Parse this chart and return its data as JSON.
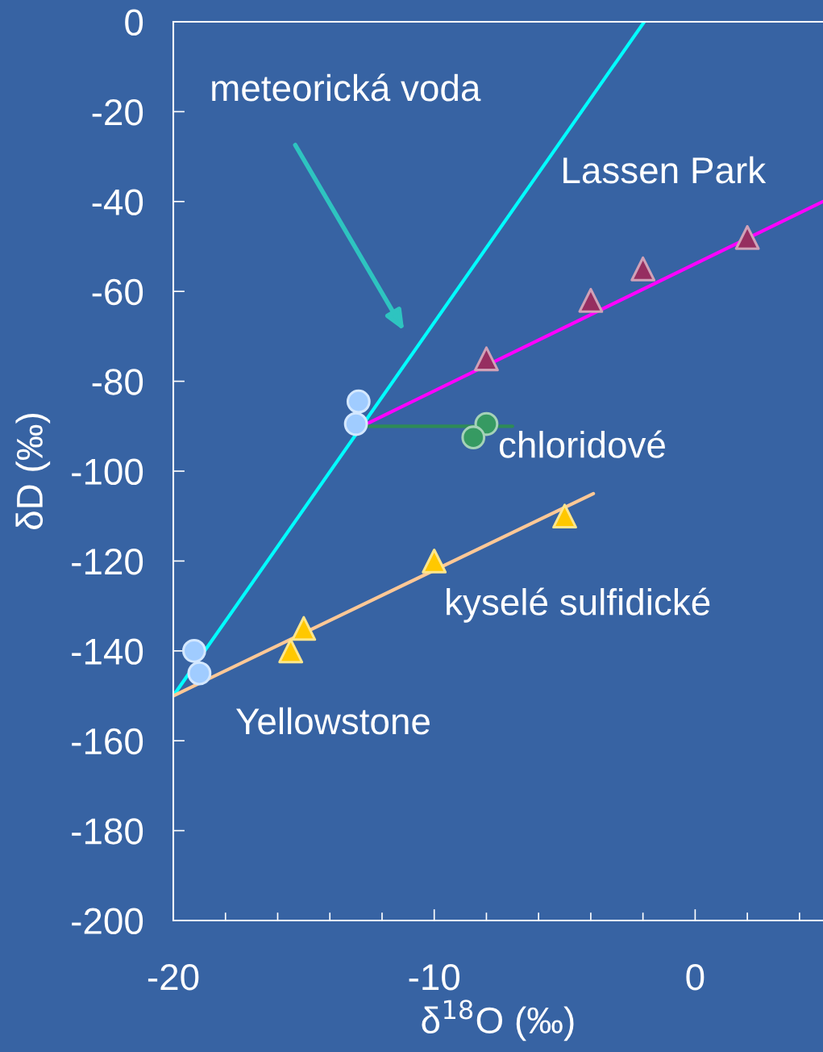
{
  "chart_data": {
    "type": "scatter",
    "xlabel": "δ$^{18}$O (‰)",
    "ylabel": "δD (‰)",
    "xlim": [
      -20,
      4.9
    ],
    "ylim": [
      -200,
      0
    ],
    "xticks": [
      -20,
      {
        "value": -18,
        "label": null
      },
      {
        "value": -16,
        "label": null
      },
      {
        "value": -14,
        "label": null
      },
      {
        "value": -12,
        "label": null
      },
      -10,
      {
        "value": -8,
        "label": null
      },
      {
        "value": -6,
        "label": null
      },
      {
        "value": -4,
        "label": null
      },
      {
        "value": -2,
        "label": null
      },
      0,
      {
        "value": 2,
        "label": null
      },
      {
        "value": 4,
        "label": null
      }
    ],
    "yticks": [
      0,
      -20,
      -40,
      -60,
      -80,
      -100,
      -120,
      -140,
      -160,
      -180,
      -200
    ],
    "series": [
      {
        "type": "line",
        "color": "#00ffff",
        "x": [
          -20,
          -1.95
        ],
        "values": [
          -150,
          0
        ]
      },
      {
        "type": "line",
        "color": "#ff00ff",
        "x": [
          -12.6,
          4.9
        ],
        "values": [
          -89.5,
          -40
        ]
      },
      {
        "type": "line",
        "color": "#2e8b57",
        "x": [
          -12.6,
          -7
        ],
        "values": [
          -90,
          -90
        ]
      },
      {
        "type": "line",
        "color": "#ffc896",
        "x": [
          -20,
          -3.9
        ],
        "values": [
          -150,
          -105
        ]
      },
      {
        "marker": "circle",
        "color": "#a0ccff",
        "x": [
          -12.9,
          -13,
          -19.2,
          -19
        ],
        "values": [
          -84.5,
          -89.5,
          -140,
          -145
        ]
      },
      {
        "marker": "circle",
        "color": "#369a62",
        "x": [
          -8,
          -8.5
        ],
        "values": [
          -89.5,
          -92.5
        ]
      },
      {
        "marker": "triangle",
        "color": "#962e60",
        "x": [
          -8,
          -4,
          -2,
          2
        ],
        "values": [
          -75,
          -62,
          -55,
          -48
        ]
      },
      {
        "marker": "triangle",
        "color": "#ffc800",
        "x": [
          -15,
          -15.5,
          -10,
          -5
        ],
        "values": [
          -135,
          -140,
          -120,
          -110
        ]
      }
    ],
    "annotations": [
      "meteorická voda",
      "Lassen Park",
      "chloridové",
      "kyselé sulfidické",
      "Yellowstone"
    ]
  }
}
